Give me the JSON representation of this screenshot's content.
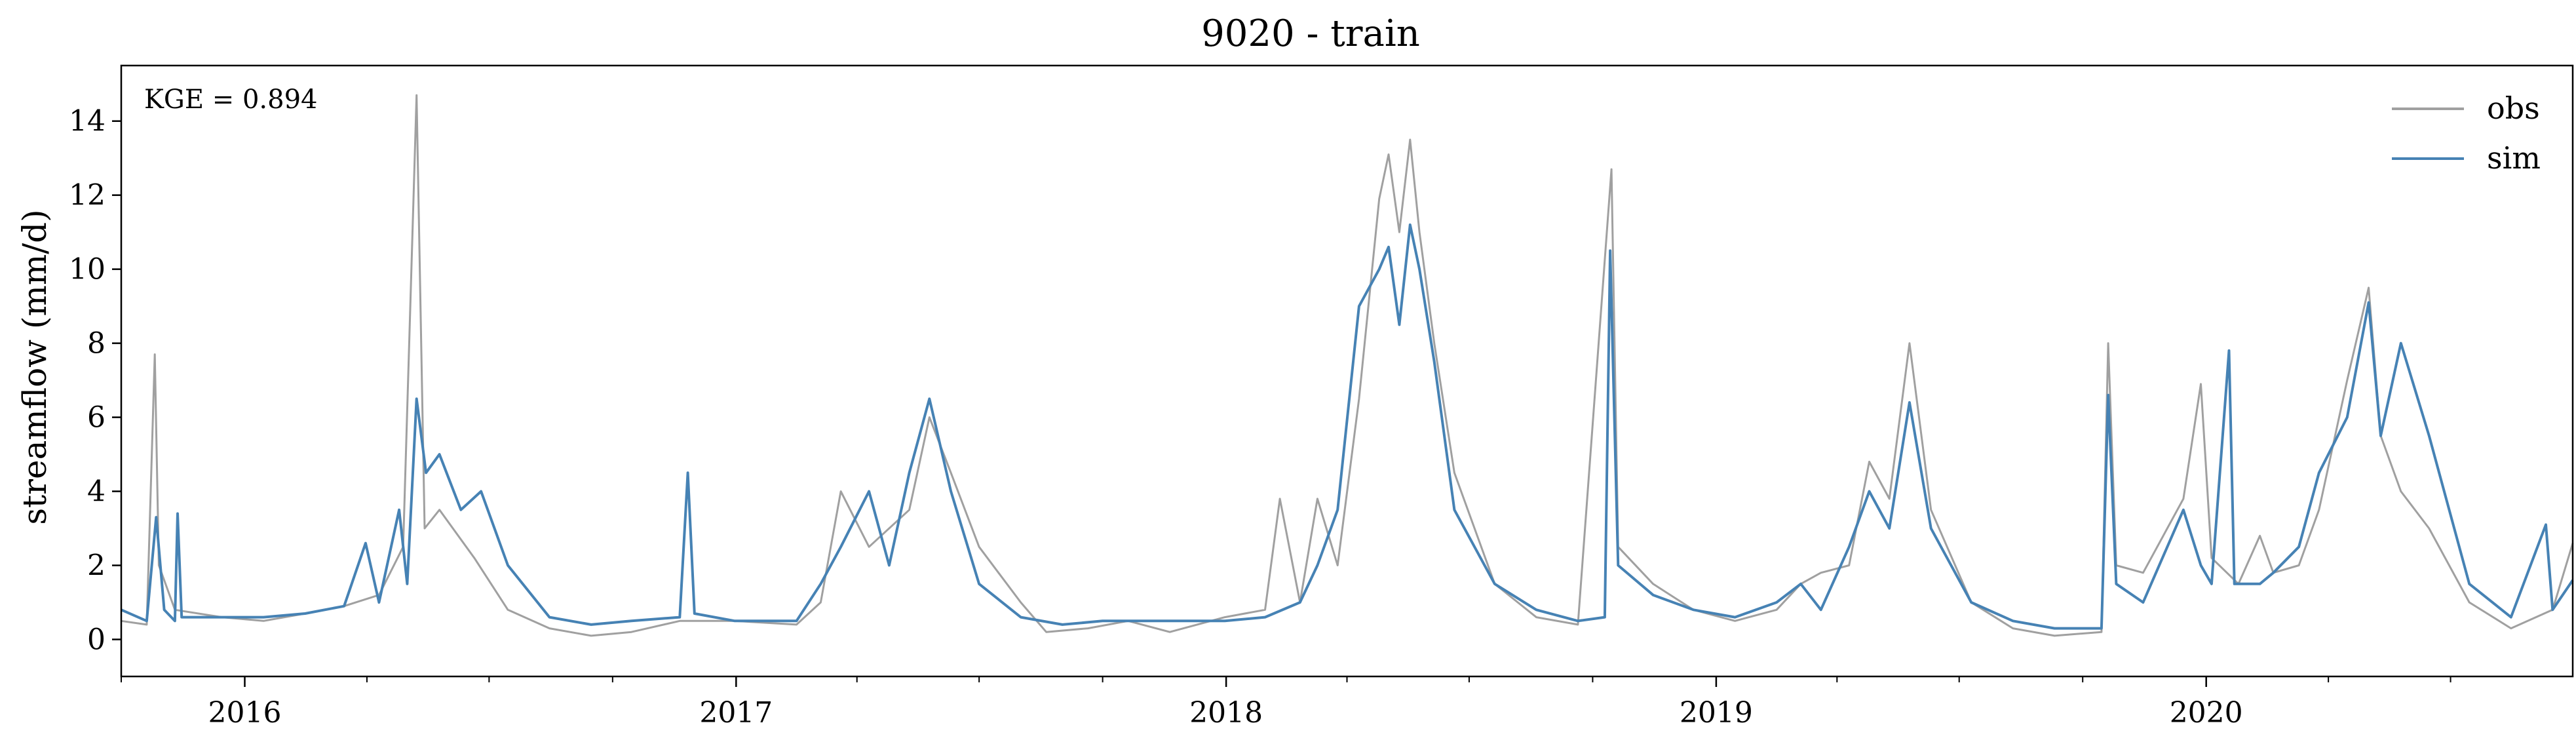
{
  "chart_data": {
    "type": "line",
    "title": "9020 - train",
    "xlabel": "",
    "ylabel": "streamflow (mm/d)",
    "xlim": [
      "2015-10-01",
      "2020-09-30"
    ],
    "ylim": [
      -1,
      15.5
    ],
    "yticks": [
      0,
      2,
      4,
      6,
      8,
      10,
      12,
      14
    ],
    "xticks": [
      {
        "date": "2016-01-01",
        "label": "2016"
      },
      {
        "date": "2017-01-01",
        "label": "2017"
      },
      {
        "date": "2018-01-01",
        "label": "2018"
      },
      {
        "date": "2019-01-01",
        "label": "2019"
      },
      {
        "date": "2020-01-01",
        "label": "2020"
      }
    ],
    "grid": false,
    "legend_position": "top-right",
    "annotation": "KGE = 0.894",
    "series": [
      {
        "name": "obs",
        "color": "#a0a0a0",
        "points": [
          [
            "2015-10-01",
            0.5
          ],
          [
            "2015-10-20",
            0.4
          ],
          [
            "2015-10-26",
            7.7
          ],
          [
            "2015-10-29",
            2.0
          ],
          [
            "2015-11-10",
            0.8
          ],
          [
            "2015-12-15",
            0.6
          ],
          [
            "2016-01-15",
            0.5
          ],
          [
            "2016-02-15",
            0.7
          ],
          [
            "2016-03-15",
            0.9
          ],
          [
            "2016-04-10",
            1.2
          ],
          [
            "2016-04-28",
            2.5
          ],
          [
            "2016-05-08",
            14.7
          ],
          [
            "2016-05-14",
            3.0
          ],
          [
            "2016-05-25",
            3.5
          ],
          [
            "2016-06-20",
            2.2
          ],
          [
            "2016-07-15",
            0.8
          ],
          [
            "2016-08-15",
            0.3
          ],
          [
            "2016-09-15",
            0.1
          ],
          [
            "2016-10-15",
            0.2
          ],
          [
            "2016-11-20",
            0.5
          ],
          [
            "2016-12-31",
            0.5
          ],
          [
            "2017-02-15",
            0.4
          ],
          [
            "2017-03-05",
            1.0
          ],
          [
            "2017-03-20",
            4.0
          ],
          [
            "2017-04-10",
            2.5
          ],
          [
            "2017-05-10",
            3.5
          ],
          [
            "2017-05-25",
            6.0
          ],
          [
            "2017-06-10",
            4.5
          ],
          [
            "2017-07-01",
            2.5
          ],
          [
            "2017-08-01",
            1.0
          ],
          [
            "2017-08-20",
            0.2
          ],
          [
            "2017-09-20",
            0.3
          ],
          [
            "2017-10-20",
            0.5
          ],
          [
            "2017-11-20",
            0.2
          ],
          [
            "2017-12-31",
            0.6
          ],
          [
            "2018-01-30",
            0.8
          ],
          [
            "2018-02-10",
            3.8
          ],
          [
            "2018-02-25",
            1.0
          ],
          [
            "2018-03-10",
            3.8
          ],
          [
            "2018-03-25",
            2.0
          ],
          [
            "2018-04-10",
            6.5
          ],
          [
            "2018-04-25",
            11.9
          ],
          [
            "2018-05-02",
            13.1
          ],
          [
            "2018-05-10",
            11.0
          ],
          [
            "2018-05-18",
            13.5
          ],
          [
            "2018-05-25",
            11.0
          ],
          [
            "2018-06-05",
            8.0
          ],
          [
            "2018-06-20",
            4.5
          ],
          [
            "2018-07-20",
            1.5
          ],
          [
            "2018-08-20",
            0.6
          ],
          [
            "2018-09-20",
            0.4
          ],
          [
            "2018-10-15",
            12.7
          ],
          [
            "2018-10-20",
            2.5
          ],
          [
            "2018-11-15",
            1.5
          ],
          [
            "2018-12-15",
            0.8
          ],
          [
            "2019-01-15",
            0.5
          ],
          [
            "2019-02-15",
            0.8
          ],
          [
            "2019-03-05",
            1.5
          ],
          [
            "2019-03-20",
            1.8
          ],
          [
            "2019-04-10",
            2.0
          ],
          [
            "2019-04-25",
            4.8
          ],
          [
            "2019-05-10",
            3.8
          ],
          [
            "2019-05-25",
            8.0
          ],
          [
            "2019-06-10",
            3.5
          ],
          [
            "2019-07-10",
            1.0
          ],
          [
            "2019-08-10",
            0.3
          ],
          [
            "2019-09-10",
            0.1
          ],
          [
            "2019-10-15",
            0.2
          ],
          [
            "2019-10-20",
            8.0
          ],
          [
            "2019-10-26",
            2.0
          ],
          [
            "2019-11-15",
            1.8
          ],
          [
            "2019-12-15",
            3.8
          ],
          [
            "2019-12-28",
            6.9
          ],
          [
            "2020-01-05",
            2.2
          ],
          [
            "2020-01-25",
            1.5
          ],
          [
            "2020-02-10",
            2.8
          ],
          [
            "2020-02-20",
            1.8
          ],
          [
            "2020-03-10",
            2.0
          ],
          [
            "2020-03-25",
            3.5
          ],
          [
            "2020-04-15",
            7.0
          ],
          [
            "2020-05-01",
            9.5
          ],
          [
            "2020-05-10",
            5.5
          ],
          [
            "2020-05-25",
            4.0
          ],
          [
            "2020-06-15",
            3.0
          ],
          [
            "2020-07-15",
            1.0
          ],
          [
            "2020-08-15",
            0.3
          ],
          [
            "2020-09-15",
            0.8
          ],
          [
            "2020-09-30",
            2.6
          ]
        ]
      },
      {
        "name": "sim",
        "color": "#4682b4",
        "points": [
          [
            "2015-10-01",
            0.8
          ],
          [
            "2015-10-20",
            0.5
          ],
          [
            "2015-10-27",
            3.3
          ],
          [
            "2015-11-02",
            0.8
          ],
          [
            "2015-11-10",
            0.5
          ],
          [
            "2015-11-12",
            3.4
          ],
          [
            "2015-11-15",
            0.6
          ],
          [
            "2015-12-15",
            0.6
          ],
          [
            "2016-01-15",
            0.6
          ],
          [
            "2016-02-15",
            0.7
          ],
          [
            "2016-03-15",
            0.9
          ],
          [
            "2016-03-31",
            2.6
          ],
          [
            "2016-04-10",
            1.0
          ],
          [
            "2016-04-25",
            3.5
          ],
          [
            "2016-05-01",
            1.5
          ],
          [
            "2016-05-08",
            6.5
          ],
          [
            "2016-05-15",
            4.5
          ],
          [
            "2016-05-25",
            5.0
          ],
          [
            "2016-06-10",
            3.5
          ],
          [
            "2016-06-25",
            4.0
          ],
          [
            "2016-07-15",
            2.0
          ],
          [
            "2016-08-15",
            0.6
          ],
          [
            "2016-09-15",
            0.4
          ],
          [
            "2016-10-15",
            0.5
          ],
          [
            "2016-11-20",
            0.6
          ],
          [
            "2016-11-26",
            4.5
          ],
          [
            "2016-12-01",
            0.7
          ],
          [
            "2016-12-31",
            0.5
          ],
          [
            "2017-02-15",
            0.5
          ],
          [
            "2017-03-05",
            1.5
          ],
          [
            "2017-03-20",
            2.5
          ],
          [
            "2017-04-10",
            4.0
          ],
          [
            "2017-04-25",
            2.0
          ],
          [
            "2017-05-10",
            4.5
          ],
          [
            "2017-05-25",
            6.5
          ],
          [
            "2017-06-10",
            4.0
          ],
          [
            "2017-07-01",
            1.5
          ],
          [
            "2017-08-01",
            0.6
          ],
          [
            "2017-09-01",
            0.4
          ],
          [
            "2017-10-01",
            0.5
          ],
          [
            "2017-11-20",
            0.5
          ],
          [
            "2017-12-31",
            0.5
          ],
          [
            "2018-01-30",
            0.6
          ],
          [
            "2018-02-25",
            1.0
          ],
          [
            "2018-03-10",
            2.0
          ],
          [
            "2018-03-25",
            3.5
          ],
          [
            "2018-04-10",
            9.0
          ],
          [
            "2018-04-25",
            10.0
          ],
          [
            "2018-05-02",
            10.6
          ],
          [
            "2018-05-10",
            8.5
          ],
          [
            "2018-05-18",
            11.2
          ],
          [
            "2018-05-25",
            10.0
          ],
          [
            "2018-06-05",
            7.5
          ],
          [
            "2018-06-20",
            3.5
          ],
          [
            "2018-07-20",
            1.5
          ],
          [
            "2018-08-20",
            0.8
          ],
          [
            "2018-09-20",
            0.5
          ],
          [
            "2018-10-10",
            0.6
          ],
          [
            "2018-10-14",
            10.5
          ],
          [
            "2018-10-20",
            2.0
          ],
          [
            "2018-11-15",
            1.2
          ],
          [
            "2018-12-15",
            0.8
          ],
          [
            "2019-01-15",
            0.6
          ],
          [
            "2019-02-15",
            1.0
          ],
          [
            "2019-03-05",
            1.5
          ],
          [
            "2019-03-20",
            0.8
          ],
          [
            "2019-04-10",
            2.5
          ],
          [
            "2019-04-25",
            4.0
          ],
          [
            "2019-05-10",
            3.0
          ],
          [
            "2019-05-25",
            6.4
          ],
          [
            "2019-06-10",
            3.0
          ],
          [
            "2019-07-10",
            1.0
          ],
          [
            "2019-08-10",
            0.5
          ],
          [
            "2019-09-10",
            0.3
          ],
          [
            "2019-10-15",
            0.3
          ],
          [
            "2019-10-20",
            6.6
          ],
          [
            "2019-10-26",
            1.5
          ],
          [
            "2019-11-15",
            1.0
          ],
          [
            "2019-12-15",
            3.5
          ],
          [
            "2019-12-28",
            2.0
          ],
          [
            "2020-01-05",
            1.5
          ],
          [
            "2020-01-18",
            7.8
          ],
          [
            "2020-01-22",
            1.5
          ],
          [
            "2020-02-10",
            1.5
          ],
          [
            "2020-02-20",
            1.8
          ],
          [
            "2020-03-10",
            2.5
          ],
          [
            "2020-03-25",
            4.5
          ],
          [
            "2020-04-15",
            6.0
          ],
          [
            "2020-05-01",
            9.1
          ],
          [
            "2020-05-10",
            5.5
          ],
          [
            "2020-05-25",
            8.0
          ],
          [
            "2020-06-15",
            5.5
          ],
          [
            "2020-07-15",
            1.5
          ],
          [
            "2020-08-15",
            0.6
          ],
          [
            "2020-09-10",
            3.1
          ],
          [
            "2020-09-15",
            0.8
          ],
          [
            "2020-09-30",
            1.6
          ]
        ]
      }
    ]
  }
}
